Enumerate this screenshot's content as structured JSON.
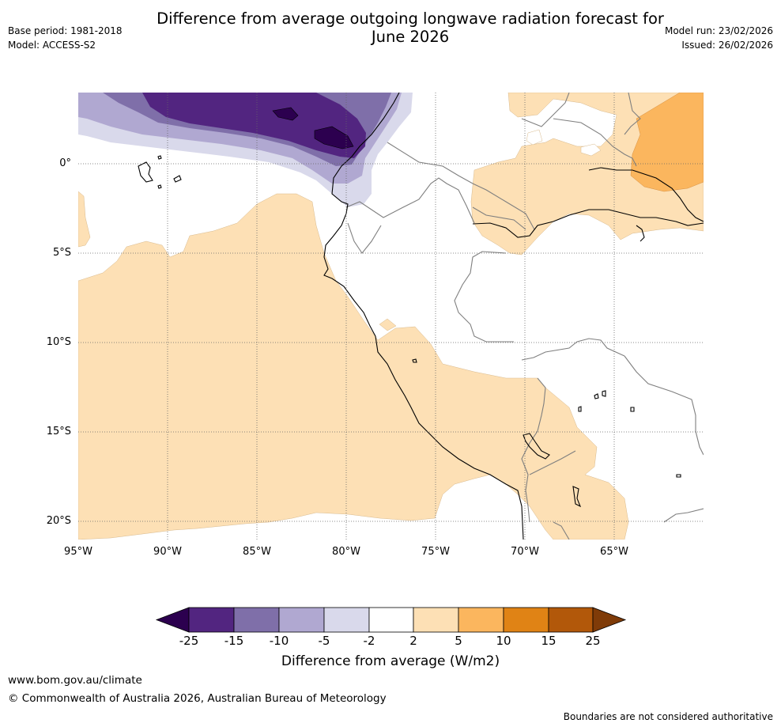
{
  "header": {
    "title_line1": "Difference from average outgoing longwave radiation forecast for",
    "title_line2": "June 2026",
    "base_period": "Base period: 1981-2018",
    "model": "Model: ACCESS-S2",
    "model_run": "Model run: 23/02/2026",
    "issued": "Issued: 26/02/2026"
  },
  "map": {
    "lat_labels": [
      "0°",
      "5°S",
      "10°S",
      "15°S",
      "20°S"
    ],
    "lon_labels": [
      "95°W",
      "90°W",
      "85°W",
      "80°W",
      "75°W",
      "70°W",
      "65°W"
    ],
    "colors": {
      "very_dark_purple": "#2c004f",
      "dark_purple": "#522580",
      "medium_purple": "#7f6fa9",
      "light_purple": "#b0a8d1",
      "pale_purple": "#d9d9eb",
      "pale_orange": "#fde0b5",
      "light_orange": "#fbb65e",
      "coastline": "#000000",
      "border": "#7f7f7f"
    }
  },
  "colorbar": {
    "ticks": [
      "-25",
      "-15",
      "-10",
      "-5",
      "-2",
      "2",
      "5",
      "10",
      "15",
      "25"
    ],
    "colors": [
      "#522580",
      "#7f6fa9",
      "#b0a8d1",
      "#d9d9eb",
      "#ffffff",
      "#fde0b5",
      "#fbb65e",
      "#e08315",
      "#b2580a"
    ],
    "under_color": "#2c004f",
    "over_color": "#7f3b08",
    "label": "Difference from average (W/m2)"
  },
  "footer": {
    "website": "www.bom.gov.au/climate",
    "copyright": "© Commonwealth of Australia 2026, Australian Bureau of Meteorology",
    "disclaimer": "Boundaries are not considered authoritative"
  }
}
